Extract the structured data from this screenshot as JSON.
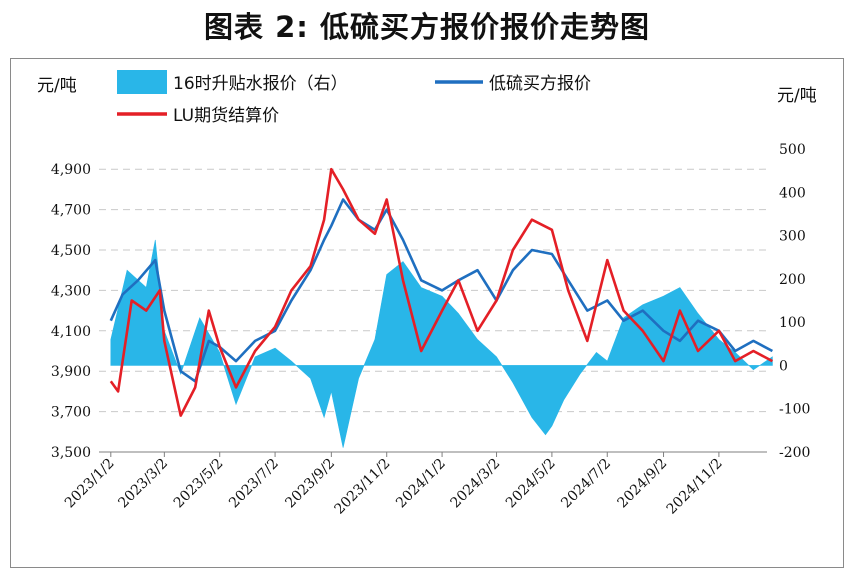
{
  "title": "图表 2:  低硫买方报价报价走势图",
  "left_unit": "元/吨",
  "right_unit": "元/吨",
  "chart_data": {
    "type": "line+bar",
    "legend": [
      "16时升贴水报价（右）",
      "低硫买方报价",
      "LU期货结算价"
    ],
    "colors": {
      "premium": "#29b6e8",
      "buyer_quote": "#1f6fc0",
      "lu_settle": "#e41f26"
    },
    "x_ticks": [
      "2023/1/2",
      "2023/3/2",
      "2023/5/2",
      "2023/7/2",
      "2023/9/2",
      "2023/11/2",
      "2024/1/2",
      "2024/3/2",
      "2024/5/2",
      "2024/7/2",
      "2024/9/2",
      "2024/11/2"
    ],
    "y_left": {
      "ticks": [
        "3,500",
        "3,700",
        "3,900",
        "4,100",
        "4,300",
        "4,500",
        "4,700",
        "4,900"
      ],
      "range": [
        3500,
        5000
      ]
    },
    "y_right": {
      "ticks": [
        "-200",
        "-100",
        "0",
        "100",
        "200",
        "300",
        "400",
        "500"
      ],
      "range": [
        -200,
        500
      ]
    },
    "series": [
      {
        "name": "16时升贴水报价（右）",
        "axis": "right",
        "kind": "area",
        "points": [
          [
            "2023/1/2",
            60
          ],
          [
            "2023/1/20",
            220
          ],
          [
            "2023/2/10",
            180
          ],
          [
            "2023/2/20",
            290
          ],
          [
            "2023/3/2",
            80
          ],
          [
            "2023/3/20",
            -20
          ],
          [
            "2023/4/10",
            110
          ],
          [
            "2023/5/2",
            30
          ],
          [
            "2023/5/20",
            -90
          ],
          [
            "2023/6/10",
            20
          ],
          [
            "2023/7/2",
            40
          ],
          [
            "2023/7/20",
            10
          ],
          [
            "2023/8/10",
            -30
          ],
          [
            "2023/8/25",
            -120
          ],
          [
            "2023/9/2",
            -60
          ],
          [
            "2023/9/15",
            -190
          ],
          [
            "2023/10/2",
            -30
          ],
          [
            "2023/10/20",
            60
          ],
          [
            "2023/11/2",
            210
          ],
          [
            "2023/11/20",
            240
          ],
          [
            "2023/12/10",
            180
          ],
          [
            "2024/1/2",
            160
          ],
          [
            "2024/1/20",
            120
          ],
          [
            "2024/2/10",
            60
          ],
          [
            "2024/3/2",
            20
          ],
          [
            "2024/3/20",
            -40
          ],
          [
            "2024/4/10",
            -120
          ],
          [
            "2024/4/25",
            -160
          ],
          [
            "2024/5/2",
            -140
          ],
          [
            "2024/5/15",
            -80
          ],
          [
            "2024/6/2",
            -20
          ],
          [
            "2024/6/20",
            30
          ],
          [
            "2024/7/2",
            10
          ],
          [
            "2024/7/20",
            110
          ],
          [
            "2024/8/10",
            140
          ],
          [
            "2024/9/2",
            160
          ],
          [
            "2024/9/20",
            180
          ],
          [
            "2024/10/10",
            120
          ],
          [
            "2024/11/2",
            60
          ],
          [
            "2024/11/20",
            30
          ],
          [
            "2024/12/10",
            -10
          ],
          [
            "2024/12/31",
            20
          ]
        ]
      },
      {
        "name": "低硫买方报价",
        "axis": "left",
        "kind": "line",
        "points": [
          [
            "2023/1/2",
            4150
          ],
          [
            "2023/1/15",
            4280
          ],
          [
            "2023/2/1",
            4350
          ],
          [
            "2023/2/20",
            4450
          ],
          [
            "2023/3/2",
            4200
          ],
          [
            "2023/3/20",
            3900
          ],
          [
            "2023/4/5",
            3850
          ],
          [
            "2023/4/20",
            4050
          ],
          [
            "2023/5/2",
            4020
          ],
          [
            "2023/5/20",
            3950
          ],
          [
            "2023/6/10",
            4050
          ],
          [
            "2023/7/2",
            4100
          ],
          [
            "2023/7/20",
            4250
          ],
          [
            "2023/8/10",
            4400
          ],
          [
            "2023/8/25",
            4550
          ],
          [
            "2023/9/2",
            4620
          ],
          [
            "2023/9/15",
            4750
          ],
          [
            "2023/10/2",
            4650
          ],
          [
            "2023/10/20",
            4600
          ],
          [
            "2023/11/2",
            4700
          ],
          [
            "2023/11/20",
            4550
          ],
          [
            "2023/12/10",
            4350
          ],
          [
            "2024/1/2",
            4300
          ],
          [
            "2024/1/20",
            4350
          ],
          [
            "2024/2/10",
            4400
          ],
          [
            "2024/3/2",
            4250
          ],
          [
            "2024/3/20",
            4400
          ],
          [
            "2024/4/10",
            4500
          ],
          [
            "2024/5/2",
            4480
          ],
          [
            "2024/5/20",
            4350
          ],
          [
            "2024/6/10",
            4200
          ],
          [
            "2024/7/2",
            4250
          ],
          [
            "2024/7/20",
            4150
          ],
          [
            "2024/8/10",
            4200
          ],
          [
            "2024/9/2",
            4100
          ],
          [
            "2024/9/20",
            4050
          ],
          [
            "2024/10/10",
            4150
          ],
          [
            "2024/11/2",
            4100
          ],
          [
            "2024/11/20",
            4000
          ],
          [
            "2024/12/10",
            4050
          ],
          [
            "2024/12/31",
            4000
          ]
        ]
      },
      {
        "name": "LU期货结算价",
        "axis": "left",
        "kind": "line",
        "points": [
          [
            "2023/1/2",
            3850
          ],
          [
            "2023/1/10",
            3800
          ],
          [
            "2023/1/25",
            4250
          ],
          [
            "2023/2/10",
            4200
          ],
          [
            "2023/2/25",
            4300
          ],
          [
            "2023/3/2",
            4050
          ],
          [
            "2023/3/20",
            3680
          ],
          [
            "2023/4/5",
            3820
          ],
          [
            "2023/4/20",
            4200
          ],
          [
            "2023/5/2",
            4020
          ],
          [
            "2023/5/20",
            3820
          ],
          [
            "2023/6/10",
            4000
          ],
          [
            "2023/7/2",
            4120
          ],
          [
            "2023/7/20",
            4300
          ],
          [
            "2023/8/10",
            4420
          ],
          [
            "2023/8/25",
            4650
          ],
          [
            "2023/9/2",
            4900
          ],
          [
            "2023/9/15",
            4800
          ],
          [
            "2023/10/2",
            4650
          ],
          [
            "2023/10/20",
            4580
          ],
          [
            "2023/11/2",
            4750
          ],
          [
            "2023/11/20",
            4350
          ],
          [
            "2023/12/10",
            4000
          ],
          [
            "2024/1/2",
            4200
          ],
          [
            "2024/1/20",
            4350
          ],
          [
            "2024/2/10",
            4100
          ],
          [
            "2024/3/2",
            4250
          ],
          [
            "2024/3/20",
            4500
          ],
          [
            "2024/4/10",
            4650
          ],
          [
            "2024/5/2",
            4600
          ],
          [
            "2024/5/20",
            4300
          ],
          [
            "2024/6/10",
            4050
          ],
          [
            "2024/7/2",
            4450
          ],
          [
            "2024/7/20",
            4200
          ],
          [
            "2024/8/10",
            4100
          ],
          [
            "2024/9/2",
            3950
          ],
          [
            "2024/9/20",
            4200
          ],
          [
            "2024/10/10",
            4000
          ],
          [
            "2024/11/2",
            4100
          ],
          [
            "2024/11/20",
            3950
          ],
          [
            "2024/12/10",
            4000
          ],
          [
            "2024/12/31",
            3950
          ]
        ]
      }
    ]
  }
}
